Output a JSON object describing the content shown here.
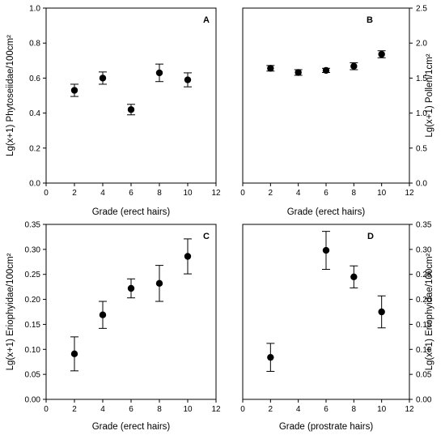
{
  "chart_data": [
    {
      "panel": "A",
      "type": "scatter",
      "xlabel": "Grade (erect hairs)",
      "ylabel": "Lg(x+1) Phytoseiidae/100cm²",
      "xlim": [
        0,
        12
      ],
      "ylim": [
        0,
        1.0
      ],
      "xticks": [
        0,
        2,
        4,
        6,
        8,
        10,
        12
      ],
      "yticks": [
        0.0,
        0.2,
        0.4,
        0.6,
        0.8,
        1.0
      ],
      "ytick_decimals": 1,
      "y_axis_side": "left",
      "error_bars": true,
      "points": [
        {
          "x": 2,
          "y": 0.53,
          "err": 0.035
        },
        {
          "x": 4,
          "y": 0.6,
          "err": 0.035
        },
        {
          "x": 6,
          "y": 0.42,
          "err": 0.03
        },
        {
          "x": 8,
          "y": 0.63,
          "err": 0.05
        },
        {
          "x": 10,
          "y": 0.59,
          "err": 0.04
        }
      ]
    },
    {
      "panel": "B",
      "type": "scatter",
      "xlabel": "Grade (erect hairs)",
      "ylabel": "Lg(x+1) Pollen/1cm²",
      "xlim": [
        0,
        12
      ],
      "ylim": [
        0,
        2.5
      ],
      "xticks": [
        0,
        2,
        4,
        6,
        8,
        10,
        12
      ],
      "yticks": [
        0.0,
        0.5,
        1.0,
        1.5,
        2.0,
        2.5
      ],
      "ytick_decimals": 1,
      "y_axis_side": "right",
      "error_bars": true,
      "points": [
        {
          "x": 2,
          "y": 1.64,
          "err": 0.04
        },
        {
          "x": 4,
          "y": 1.58,
          "err": 0.04
        },
        {
          "x": 6,
          "y": 1.61,
          "err": 0.03
        },
        {
          "x": 8,
          "y": 1.67,
          "err": 0.05
        },
        {
          "x": 10,
          "y": 1.84,
          "err": 0.05
        }
      ]
    },
    {
      "panel": "C",
      "type": "scatter",
      "xlabel": "Grade (erect hairs)",
      "ylabel": "Lg(x+1) Eriophyidae/100cm²",
      "xlim": [
        0,
        12
      ],
      "ylim": [
        0,
        0.35
      ],
      "xticks": [
        0,
        2,
        4,
        6,
        8,
        10,
        12
      ],
      "yticks": [
        0.0,
        0.05,
        0.1,
        0.15,
        0.2,
        0.25,
        0.3,
        0.35
      ],
      "ytick_decimals": 2,
      "y_axis_side": "left",
      "error_bars": true,
      "points": [
        {
          "x": 2,
          "y": 0.091,
          "err": 0.034
        },
        {
          "x": 4,
          "y": 0.169,
          "err": 0.027
        },
        {
          "x": 6,
          "y": 0.222,
          "err": 0.019
        },
        {
          "x": 8,
          "y": 0.232,
          "err": 0.036
        },
        {
          "x": 10,
          "y": 0.286,
          "err": 0.035
        }
      ]
    },
    {
      "panel": "D",
      "type": "scatter",
      "xlabel": "Grade (prostrate hairs)",
      "ylabel": "Lg(x+1) Eriophyidae/100cm²",
      "xlim": [
        0,
        12
      ],
      "ylim": [
        0,
        0.35
      ],
      "xticks": [
        0,
        2,
        4,
        6,
        8,
        10,
        12
      ],
      "yticks": [
        0.0,
        0.05,
        0.1,
        0.15,
        0.2,
        0.25,
        0.3,
        0.35
      ],
      "ytick_decimals": 2,
      "y_axis_side": "right",
      "error_bars": true,
      "points": [
        {
          "x": 2,
          "y": 0.084,
          "err": 0.028
        },
        {
          "x": 6,
          "y": 0.298,
          "err": 0.038
        },
        {
          "x": 8,
          "y": 0.245,
          "err": 0.022
        },
        {
          "x": 10,
          "y": 0.175,
          "err": 0.032
        }
      ]
    }
  ]
}
